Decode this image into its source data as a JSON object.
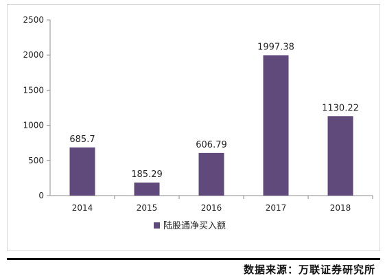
{
  "chart_data": {
    "type": "bar",
    "categories": [
      "2014",
      "2015",
      "2016",
      "2017",
      "2018"
    ],
    "series": [
      {
        "name": "陆股通净买入额",
        "values": [
          685.7,
          185.29,
          606.79,
          1997.38,
          1130.22
        ]
      }
    ],
    "data_labels": [
      "685.7",
      "185.29",
      "606.79",
      "1997.38",
      "1130.22"
    ],
    "ylim": [
      0,
      2500
    ],
    "yticks": [
      "0",
      "500",
      "1000",
      "1500",
      "2000",
      "2500"
    ],
    "grid": false,
    "legend": "bottom",
    "bar_color": "#604a7b"
  },
  "footer": {
    "source": "数据来源：万联证券研究所"
  }
}
